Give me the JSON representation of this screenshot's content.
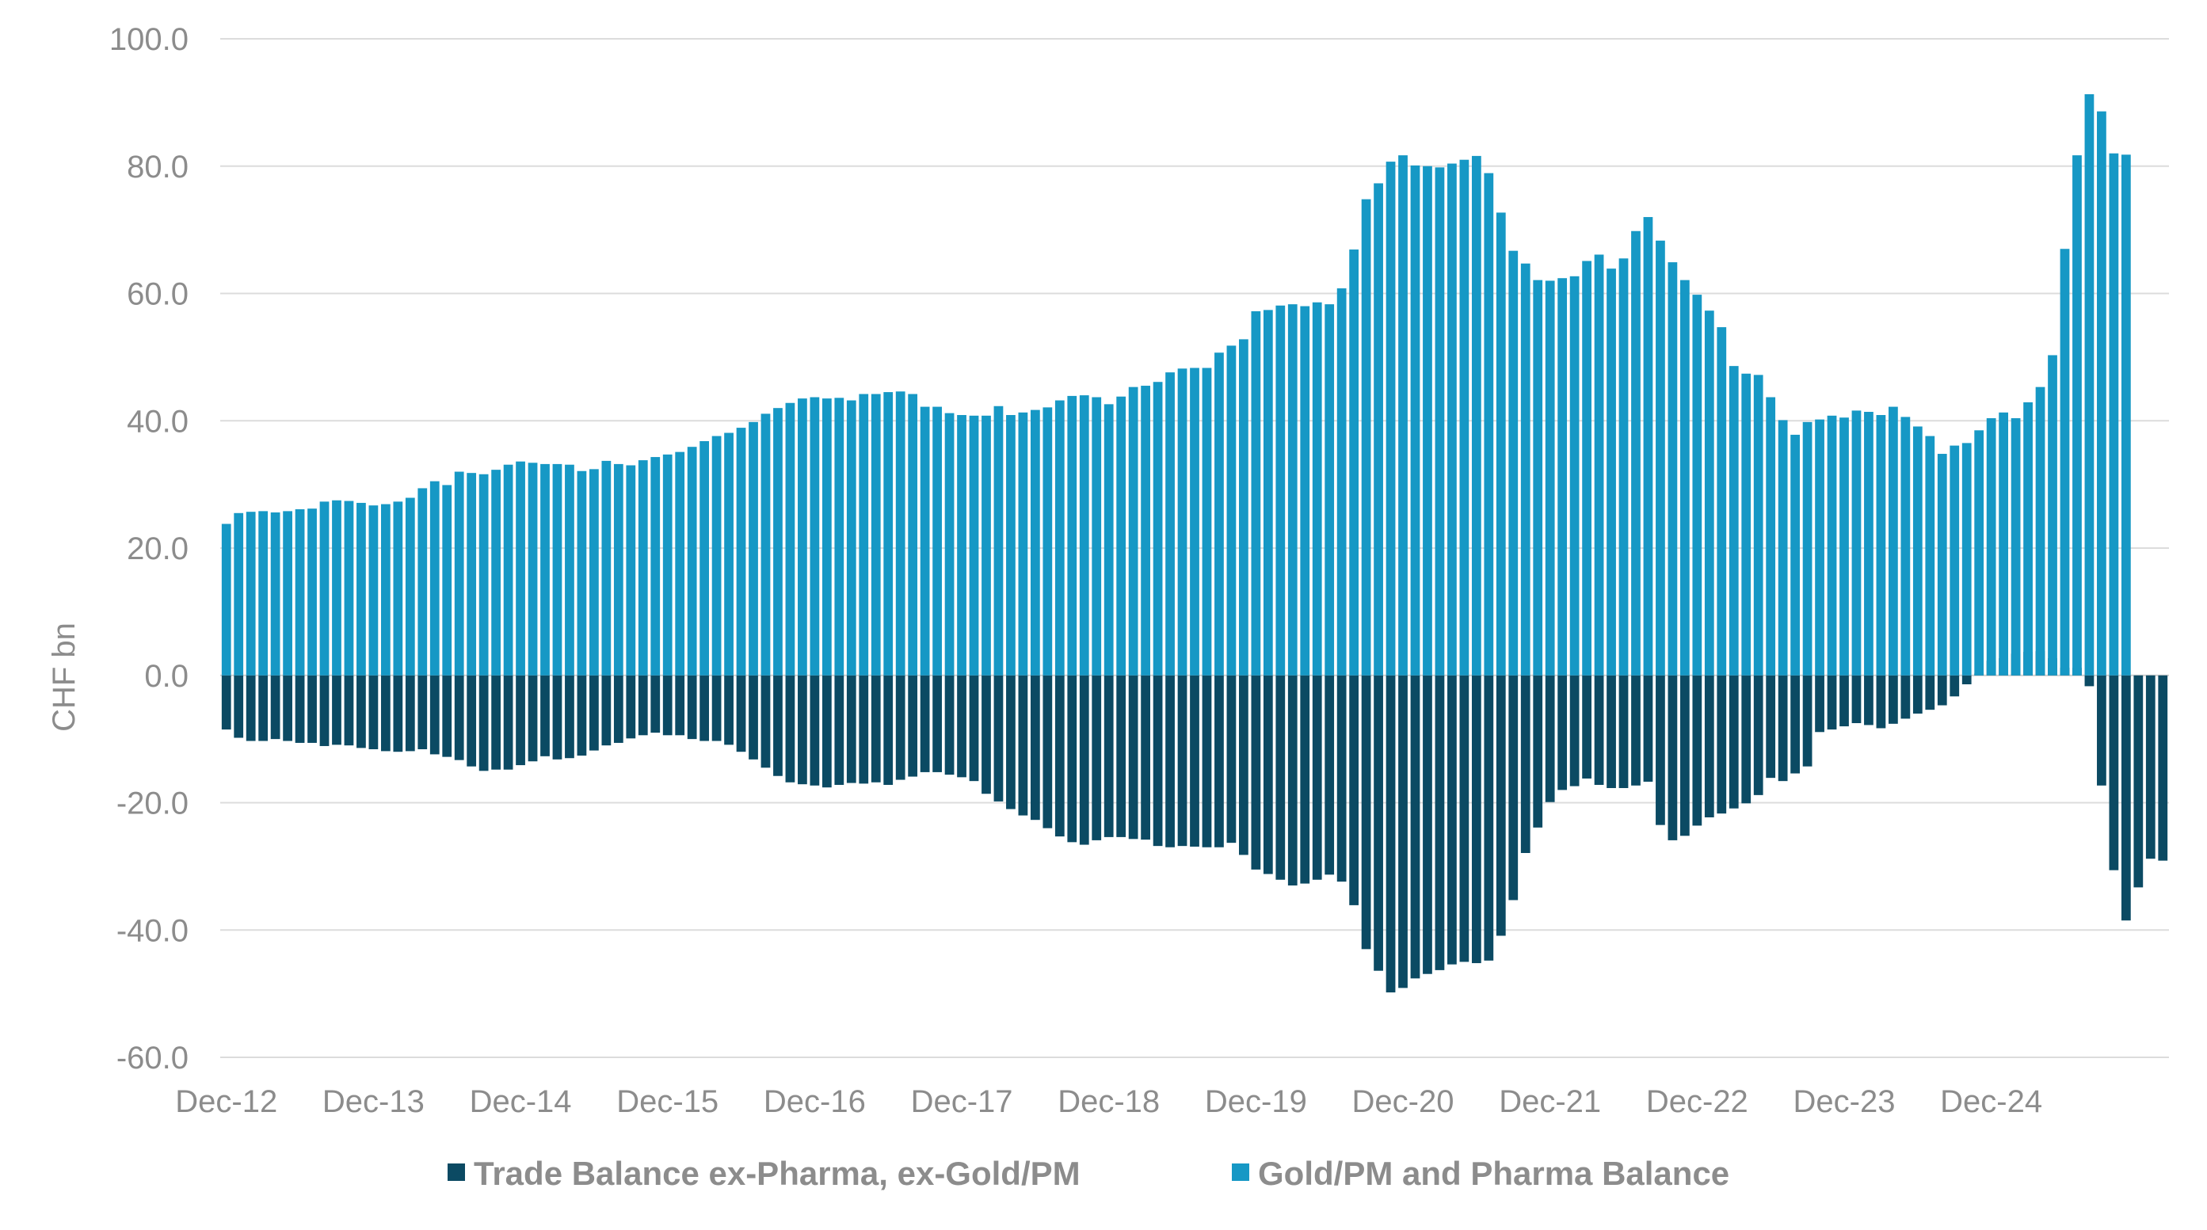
{
  "chart_data": {
    "type": "bar",
    "stacked": true,
    "ylabel": "CHF bn",
    "ylim": [
      -60,
      100
    ],
    "yticks": [
      "100.0",
      "80.0",
      "60.0",
      "40.0",
      "20.0",
      "0.0",
      "-20.0",
      "-40.0",
      "-60.0"
    ],
    "xtick_labels": [
      "Dec-12",
      "Dec-13",
      "Dec-14",
      "Dec-15",
      "Dec-16",
      "Dec-17",
      "Dec-18",
      "Dec-19",
      "Dec-20",
      "Dec-21",
      "Dec-22",
      "Dec-23",
      "Dec-24"
    ],
    "x_start": "Dec-12",
    "frequency": "monthly",
    "grid": true,
    "legend_position": "bottom",
    "series": [
      {
        "name": "Trade Balance ex-Pharma, ex-Gold/PM",
        "color": "#0b4a63",
        "values": [
          -8.5,
          -9.8,
          -10.3,
          -10.3,
          -10.0,
          -10.3,
          -10.6,
          -10.6,
          -11.1,
          -10.9,
          -11.0,
          -11.4,
          -11.6,
          -11.9,
          -12.0,
          -11.9,
          -11.6,
          -12.4,
          -12.8,
          -13.3,
          -14.3,
          -15.0,
          -14.8,
          -14.8,
          -14.1,
          -13.5,
          -12.7,
          -13.2,
          -13.0,
          -12.6,
          -11.8,
          -11.0,
          -10.6,
          -9.9,
          -9.4,
          -9.0,
          -9.4,
          -9.4,
          -10.0,
          -10.3,
          -10.3,
          -10.9,
          -12.0,
          -13.2,
          -14.5,
          -15.8,
          -16.8,
          -17.1,
          -17.3,
          -17.6,
          -17.2,
          -16.9,
          -17.0,
          -16.8,
          -17.2,
          -16.4,
          -15.9,
          -15.2,
          -15.2,
          -15.6,
          -16.0,
          -16.6,
          -18.6,
          -19.8,
          -21.0,
          -22.0,
          -22.7,
          -24.0,
          -25.3,
          -26.2,
          -26.6,
          -25.9,
          -25.4,
          -25.4,
          -25.7,
          -25.8,
          -26.8,
          -27.0,
          -26.8,
          -26.9,
          -27.0,
          -27.0,
          -26.3,
          -28.2,
          -30.5,
          -31.2,
          -32.1,
          -33.0,
          -32.7,
          -32.1,
          -31.3,
          -32.4,
          -36.1,
          -43.0,
          -46.4,
          -49.8,
          -49.1,
          -47.6,
          -46.9,
          -46.3,
          -45.4,
          -45.0,
          -45.2,
          -44.8,
          -40.9,
          -35.3,
          -27.9,
          -23.9,
          -19.9,
          -18.0,
          -17.4,
          -16.2,
          -17.2,
          -17.7,
          -17.7,
          -17.3,
          -16.7,
          -23.5,
          -25.9,
          -25.2,
          -23.6,
          -22.3,
          -21.7,
          -20.9,
          -20.1,
          -18.8,
          -16.1,
          -16.6,
          -15.4,
          -14.3,
          -8.9,
          -8.5,
          -8.0,
          -7.5,
          -7.8,
          -8.3,
          -7.6,
          -6.8,
          -6.0,
          -5.4,
          -4.7,
          -3.3,
          -1.4,
          0.3,
          2.3,
          2.7,
          3.4,
          3.7,
          3.8,
          2.7,
          1.2,
          1.2,
          -1.7,
          -17.3,
          -30.6,
          -38.5,
          -33.3,
          -28.8,
          -29.1
        ]
      },
      {
        "name": "Gold/PM and Pharma Balance",
        "color": "#1698c5",
        "values": [
          23.8,
          25.5,
          25.7,
          25.8,
          25.6,
          25.8,
          26.1,
          26.2,
          27.3,
          27.5,
          27.4,
          27.1,
          26.7,
          26.9,
          27.3,
          27.9,
          29.4,
          30.5,
          29.9,
          32.0,
          31.8,
          31.6,
          32.3,
          33.1,
          33.6,
          33.4,
          33.2,
          33.2,
          33.1,
          32.1,
          32.4,
          33.7,
          33.2,
          33.0,
          33.8,
          34.3,
          34.7,
          35.1,
          35.9,
          36.8,
          37.6,
          38.1,
          38.9,
          39.8,
          41.1,
          42.0,
          42.8,
          43.5,
          43.7,
          43.5,
          43.6,
          43.2,
          44.2,
          44.2,
          44.5,
          44.6,
          44.2,
          42.2,
          42.2,
          41.2,
          40.9,
          40.8,
          40.8,
          42.3,
          40.9,
          41.3,
          41.7,
          42.1,
          43.2,
          43.9,
          44.0,
          43.7,
          42.6,
          43.8,
          45.3,
          45.5,
          46.1,
          47.6,
          48.2,
          48.3,
          48.3,
          50.7,
          51.8,
          52.8,
          57.2,
          57.4,
          58.1,
          58.3,
          58.0,
          58.6,
          58.3,
          60.8,
          66.9,
          74.8,
          77.3,
          80.7,
          81.7,
          80.1,
          80.0,
          79.8,
          80.4,
          81.0,
          81.6,
          78.9,
          72.7,
          66.7,
          64.7,
          62.1,
          62.0,
          62.4,
          62.7,
          65.1,
          66.1,
          63.9,
          65.5,
          69.8,
          72.0,
          68.3,
          64.9,
          62.1,
          59.8,
          57.3,
          54.7,
          48.6,
          47.4,
          47.2,
          43.7,
          40.1,
          37.8,
          39.8,
          40.2,
          40.8,
          40.5,
          41.6,
          41.4,
          40.9,
          42.2,
          40.6,
          39.1,
          37.6,
          34.8,
          36.1,
          36.5,
          38.5,
          40.4,
          41.3,
          40.4,
          42.9,
          45.3,
          50.3,
          67.0,
          81.7,
          91.3,
          88.6,
          82.0,
          81.8
        ]
      }
    ]
  },
  "legend": [
    {
      "label": "Trade Balance ex-Pharma, ex-Gold/PM",
      "color": "#0b4a63"
    },
    {
      "label": "Gold/PM and Pharma Balance",
      "color": "#1698c5"
    }
  ]
}
